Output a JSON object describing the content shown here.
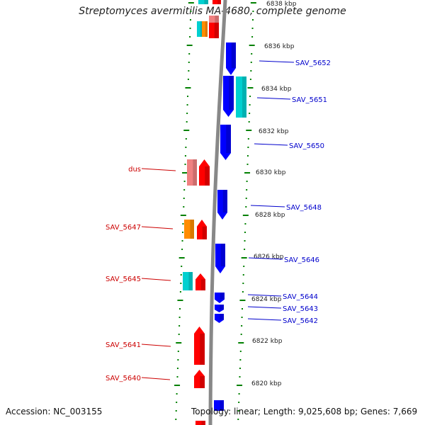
{
  "title": "Streptomyces avermitilis MA-4680, complete genome",
  "accession": "Accession: NC_003155",
  "summary": "Topology: linear; Length: 9,025,608 bp; Genes: 7,669",
  "colors": {
    "forward_red": "#ff0000",
    "forward_light_red": "#f08080",
    "orange": "#ff8c00",
    "cyan": "#00d0d0",
    "reverse_blue": "#0000ff",
    "backbone": "#888888",
    "tick_green": "#008000",
    "label_red": "#cc0000",
    "label_blue": "#0000cc"
  },
  "ruler": {
    "unit": "kbp",
    "ticks": [
      "6838 kbp",
      "6836 kbp",
      "6834 kbp",
      "6832 kbp",
      "6830 kbp",
      "6828 kbp",
      "6826 kbp",
      "6824 kbp",
      "6822 kbp",
      "6820 kbp"
    ]
  },
  "genes_left": [
    {
      "label": "dus"
    },
    {
      "label": "SAV_5647"
    },
    {
      "label": "SAV_5645"
    },
    {
      "label": "SAV_5641"
    },
    {
      "label": "SAV_5640"
    }
  ],
  "genes_right": [
    {
      "label": "SAV_5652"
    },
    {
      "label": "SAV_5651"
    },
    {
      "label": "SAV_5650"
    },
    {
      "label": "SAV_5648"
    },
    {
      "label": "SAV_5646"
    },
    {
      "label": "SAV_5644"
    },
    {
      "label": "SAV_5643"
    },
    {
      "label": "SAV_5642"
    }
  ]
}
